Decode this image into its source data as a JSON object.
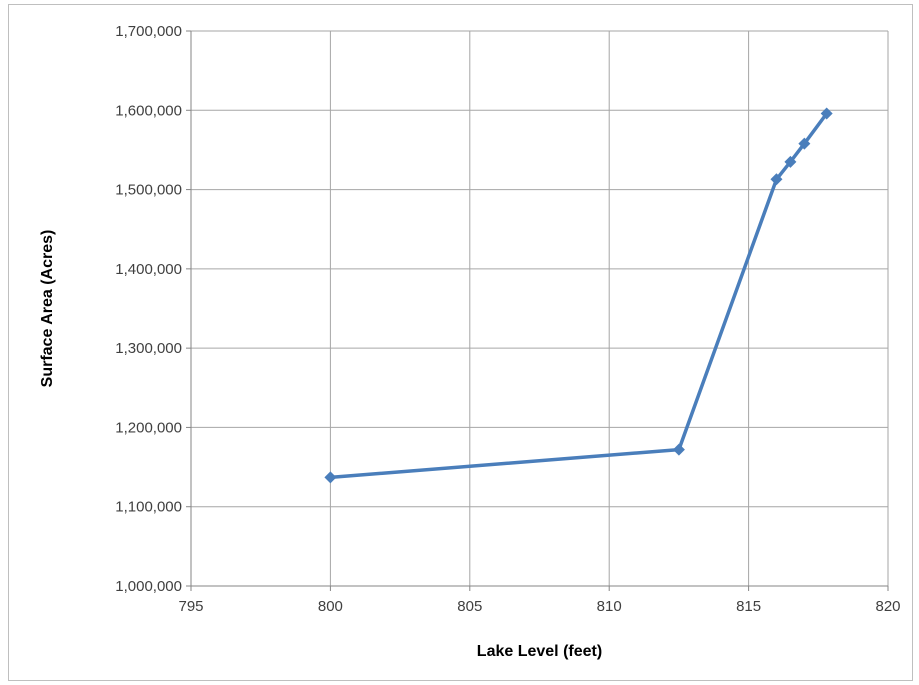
{
  "chart_data": {
    "type": "scatter",
    "title": "",
    "xlabel": "Lake Level (feet)",
    "ylabel": "Surface Area (Acres)",
    "xlim": [
      795,
      820
    ],
    "ylim": [
      1000000,
      1700000
    ],
    "xticks": [
      795,
      800,
      805,
      810,
      815,
      820
    ],
    "yticks": [
      1000000,
      1100000,
      1200000,
      1300000,
      1400000,
      1500000,
      1600000,
      1700000
    ],
    "x_tick_labels": [
      "795",
      "800",
      "805",
      "810",
      "815",
      "820"
    ],
    "y_tick_labels": [
      "1,000,000",
      "1,100,000",
      "1,200,000",
      "1,300,000",
      "1,400,000",
      "1,500,000",
      "1,600,000",
      "1,700,000"
    ],
    "grid": true,
    "legend": "none",
    "series": [
      {
        "color": "#4a7ebb",
        "marker": "diamond",
        "lines": true,
        "x": [
          800,
          812.5,
          816,
          816.5,
          817,
          817.8
        ],
        "y": [
          1137000,
          1172000,
          1513000,
          1535000,
          1558000,
          1596000
        ]
      }
    ]
  }
}
